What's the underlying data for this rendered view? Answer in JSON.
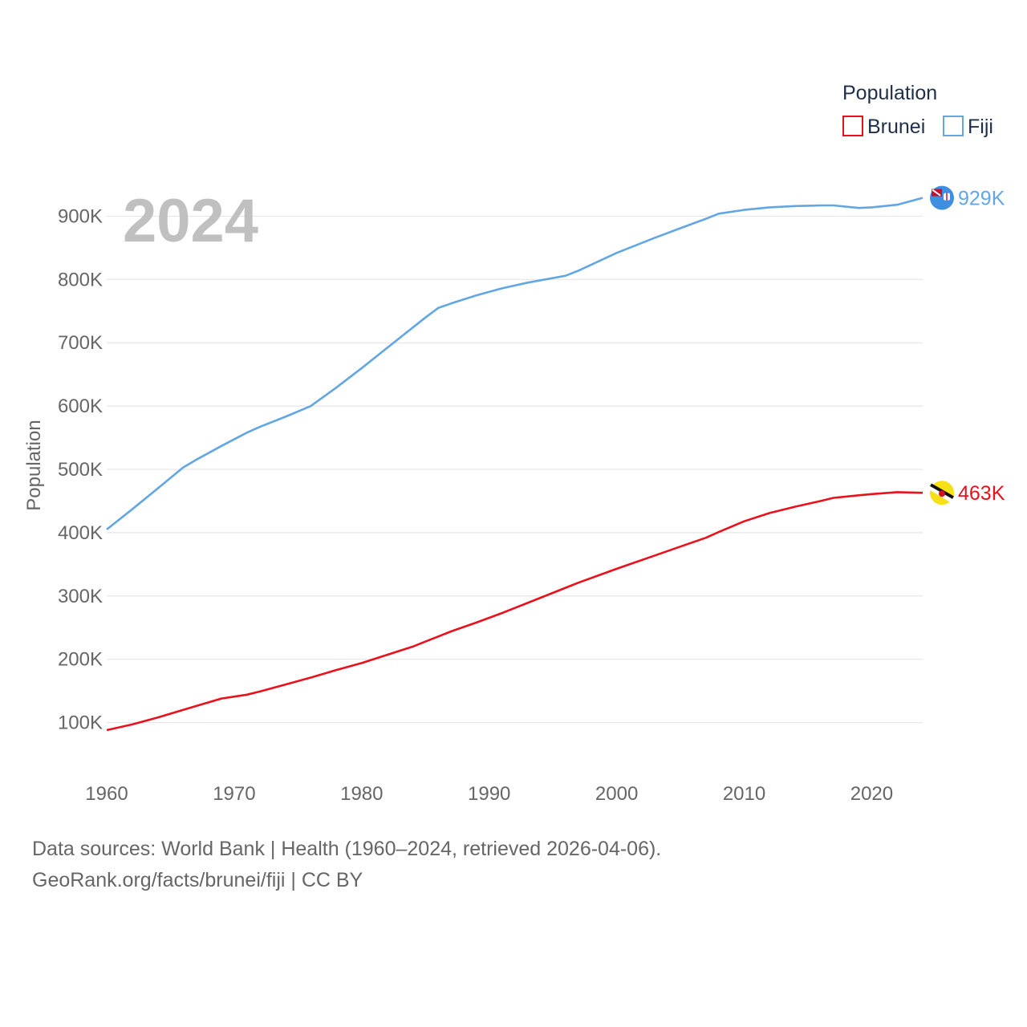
{
  "chart_data": {
    "type": "line",
    "ylabel": "Population",
    "xlabel": "",
    "year_label": "2024",
    "x": [
      1960,
      1962,
      1964,
      1966,
      1967,
      1969,
      1971,
      1972,
      1974,
      1976,
      1978,
      1980,
      1982,
      1984,
      1985,
      1986,
      1987,
      1989,
      1991,
      1993,
      1996,
      1997,
      2000,
      2003,
      2005,
      2007,
      2008,
      2010,
      2012,
      2014,
      2016,
      2017,
      2019,
      2020,
      2022,
      2024
    ],
    "series": [
      {
        "name": "Fiji",
        "color": "#63a6e4",
        "end_label": "929K",
        "values": [
          405000,
          437000,
          470000,
          503000,
          515000,
          537000,
          558000,
          567000,
          583000,
          600000,
          629000,
          660000,
          692000,
          724000,
          740000,
          755000,
          762000,
          775000,
          786000,
          795000,
          806000,
          814000,
          842000,
          866000,
          881000,
          896000,
          904000,
          910000,
          914000,
          916000,
          917000,
          917000,
          913000,
          914000,
          918000,
          929000
        ]
      },
      {
        "name": "Brunei",
        "color": "#e8111c",
        "end_label": "463K",
        "values": [
          88000,
          97000,
          108000,
          120000,
          126000,
          138000,
          144000,
          149000,
          160000,
          171000,
          183000,
          194000,
          207000,
          220000,
          228000,
          236000,
          244000,
          258000,
          273000,
          289000,
          313000,
          321000,
          343000,
          364000,
          378000,
          392000,
          401000,
          418000,
          431000,
          441000,
          450000,
          455000,
          459000,
          461000,
          464000,
          463000
        ]
      }
    ],
    "xlim": [
      1960,
      2024
    ],
    "ylim": [
      50000,
      950000
    ],
    "yticks": [
      100000,
      200000,
      300000,
      400000,
      500000,
      600000,
      700000,
      800000,
      900000
    ],
    "ytick_labels": [
      "100K",
      "200K",
      "300K",
      "400K",
      "500K",
      "600K",
      "700K",
      "800K",
      "900K"
    ],
    "xticks": [
      1960,
      1970,
      1980,
      1990,
      2000,
      2010,
      2020
    ],
    "xtick_labels": [
      "1960",
      "1970",
      "1980",
      "1990",
      "2000",
      "2010",
      "2020"
    ],
    "legend": {
      "title": "Population",
      "position": "top-right",
      "entries": [
        {
          "label": "Brunei",
          "color": "#e8111c"
        },
        {
          "label": "Fiji",
          "color": "#63a6e4"
        }
      ]
    },
    "grid": true
  },
  "source": {
    "line1": "Data sources: World Bank | Health (1960–2024, retrieved 2026-04-06).",
    "line2": "GeoRank.org/facts/brunei/fiji | CC BY"
  },
  "flags": {
    "fiji": "fiji-flag-icon",
    "brunei": "brunei-flag-icon"
  }
}
